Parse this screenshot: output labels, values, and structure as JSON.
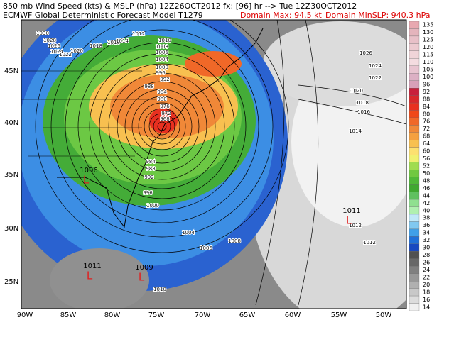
{
  "header": {
    "line1": "850 mb Wind Speed (kts) & MSLP (hPa) 12Z26OCT2012 fx: [96] hr --> Tue 12Z30OCT2012",
    "line2": "ECMWF Global Deterministic Forecast Model T1279",
    "domain_max": "Domain Max:  94.5 kt",
    "domain_min": "Domain MinSLP: 940.3 hPa"
  },
  "colorbar": [
    {
      "label": "135",
      "color": "#e8a8b0"
    },
    {
      "label": "130",
      "color": "#e4b4bc"
    },
    {
      "label": "125",
      "color": "#e8c0c8"
    },
    {
      "label": "120",
      "color": "#eccad0"
    },
    {
      "label": "115",
      "color": "#f0d4d8"
    },
    {
      "label": "110",
      "color": "#f4dce0"
    },
    {
      "label": "105",
      "color": "#e8c4d0"
    },
    {
      "label": "100",
      "color": "#dcb0c4"
    },
    {
      "label": "96",
      "color": "#d8a0b8"
    },
    {
      "label": "92",
      "color": "#c8203c"
    },
    {
      "label": "88",
      "color": "#d8282c"
    },
    {
      "label": "84",
      "color": "#e83020"
    },
    {
      "label": "80",
      "color": "#f04818"
    },
    {
      "label": "76",
      "color": "#f06828"
    },
    {
      "label": "72",
      "color": "#f08838"
    },
    {
      "label": "68",
      "color": "#f4a040"
    },
    {
      "label": "64",
      "color": "#f8c050"
    },
    {
      "label": "60",
      "color": "#fce070"
    },
    {
      "label": "56",
      "color": "#f0f070"
    },
    {
      "label": "52",
      "color": "#a0dc50"
    },
    {
      "label": "50",
      "color": "#70c840"
    },
    {
      "label": "48",
      "color": "#50b838"
    },
    {
      "label": "46",
      "color": "#40a830"
    },
    {
      "label": "44",
      "color": "#60c060"
    },
    {
      "label": "42",
      "color": "#90e090"
    },
    {
      "label": "40",
      "color": "#b0f0b0"
    },
    {
      "label": "38",
      "color": "#c0e8f8"
    },
    {
      "label": "36",
      "color": "#80c8f0"
    },
    {
      "label": "34",
      "color": "#40a0e8"
    },
    {
      "label": "32",
      "color": "#2070d8"
    },
    {
      "label": "30",
      "color": "#1848c0"
    },
    {
      "label": "28",
      "color": "#505050"
    },
    {
      "label": "26",
      "color": "#686868"
    },
    {
      "label": "24",
      "color": "#808080"
    },
    {
      "label": "22",
      "color": "#989898"
    },
    {
      "label": "20",
      "color": "#b0b0b0"
    },
    {
      "label": "18",
      "color": "#c8c8c8"
    },
    {
      "label": "16",
      "color": "#dcdcdc"
    },
    {
      "label": "14",
      "color": "#f0f0f0"
    }
  ],
  "longitudes": [
    "90W",
    "85W",
    "80W",
    "75W",
    "70W",
    "65W",
    "60W",
    "55W",
    "50W"
  ],
  "latitudes": [
    "45N",
    "40N",
    "35N",
    "30N",
    "25N"
  ],
  "isobar_labels": [
    "1030",
    "1028",
    "1026",
    "1024",
    "1022",
    "1020",
    "1018",
    "1016",
    "1014",
    "1012",
    "1010",
    "1008",
    "1006",
    "1004",
    "1000",
    "996",
    "992",
    "988",
    "984",
    "980",
    "976",
    "972",
    "968",
    "1026",
    "1024",
    "1022",
    "1020",
    "1018",
    "1016",
    "1014",
    "1012",
    "1012",
    "1008",
    "1004",
    "1000",
    "996",
    "992",
    "988",
    "984",
    "1006",
    "1010"
  ],
  "lows": [
    {
      "pressure": "1006",
      "symbol": "L"
    },
    {
      "pressure": "1011",
      "symbol": "L"
    },
    {
      "pressure": "1011",
      "symbol": "L"
    },
    {
      "pressure": "1009",
      "symbol": "L"
    }
  ]
}
